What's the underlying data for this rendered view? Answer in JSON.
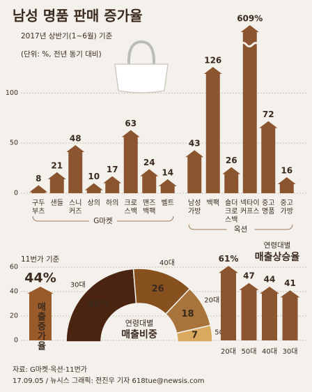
{
  "header": {
    "title": "남성 명품 판매 증가율",
    "subtitle": "2017년 상반기(1~6월) 기준",
    "note": "(단위: %, 전년 동기 대비)"
  },
  "chart_data": [
    {
      "type": "arrowbar",
      "ylim": [
        0,
        165
      ],
      "yticks": [
        0,
        50,
        100
      ],
      "grid": true,
      "color": "#8b5530",
      "groups": [
        {
          "name": "G마켓",
          "categories": [
            [
              "구두",
              "부츠"
            ],
            [
              "샌들"
            ],
            [
              "스니",
              "커즈"
            ],
            [
              "상의"
            ],
            [
              "하의"
            ],
            [
              "크로",
              "스백"
            ],
            [
              "맨즈",
              "백팩"
            ],
            [
              "벨트"
            ]
          ],
          "values": [
            8,
            21,
            48,
            10,
            17,
            63,
            24,
            14
          ]
        },
        {
          "name": "옥션",
          "categories": [
            [
              "남성",
              "가방"
            ],
            [
              "백팩"
            ],
            [
              "숄더",
              "크로",
              "스백"
            ],
            [
              "넥타이",
              "커프스"
            ],
            [
              "중고",
              "명품"
            ],
            [
              "중고",
              "가방"
            ]
          ],
          "values": [
            43,
            126,
            26,
            609,
            72,
            16
          ],
          "value_labels": [
            "43",
            "126",
            "26",
            "609%",
            "72",
            "16"
          ]
        }
      ]
    },
    {
      "type": "arrowbar",
      "title": "11번가 기준",
      "ylim": [
        0,
        62
      ],
      "yticks": [
        0,
        20,
        40,
        60
      ],
      "grid": true,
      "series": [
        {
          "name": "매출증가율",
          "color": "#9a5b2a",
          "values": [
            44
          ],
          "value_labels": [
            "44%"
          ]
        }
      ]
    },
    {
      "type": "donut",
      "title": [
        "연령대별",
        "매출비중"
      ],
      "categories": [
        "30대",
        "40대",
        "20대",
        "50대"
      ],
      "values": [
        46,
        26,
        18,
        7
      ],
      "value_labels": [
        "46%",
        "26",
        "18",
        "7"
      ],
      "colors": [
        "#4a2410",
        "#87511f",
        "#a8743c",
        "#d9aa5e"
      ]
    },
    {
      "type": "arrowbar",
      "title": [
        "연령대별",
        "매출상승율"
      ],
      "categories": [
        "20대",
        "50대",
        "40대",
        "30대"
      ],
      "values": [
        61,
        47,
        44,
        41
      ],
      "value_labels": [
        "61%",
        "47",
        "44",
        "41"
      ],
      "color": "#8b5530",
      "ylim": [
        0,
        62
      ]
    }
  ],
  "footer": {
    "source": "자료: G마켓·옥션·11번가",
    "credit": "17.09.05 / 뉴시스 그래픽: 전진우 기자 618tue@newsis.com"
  }
}
